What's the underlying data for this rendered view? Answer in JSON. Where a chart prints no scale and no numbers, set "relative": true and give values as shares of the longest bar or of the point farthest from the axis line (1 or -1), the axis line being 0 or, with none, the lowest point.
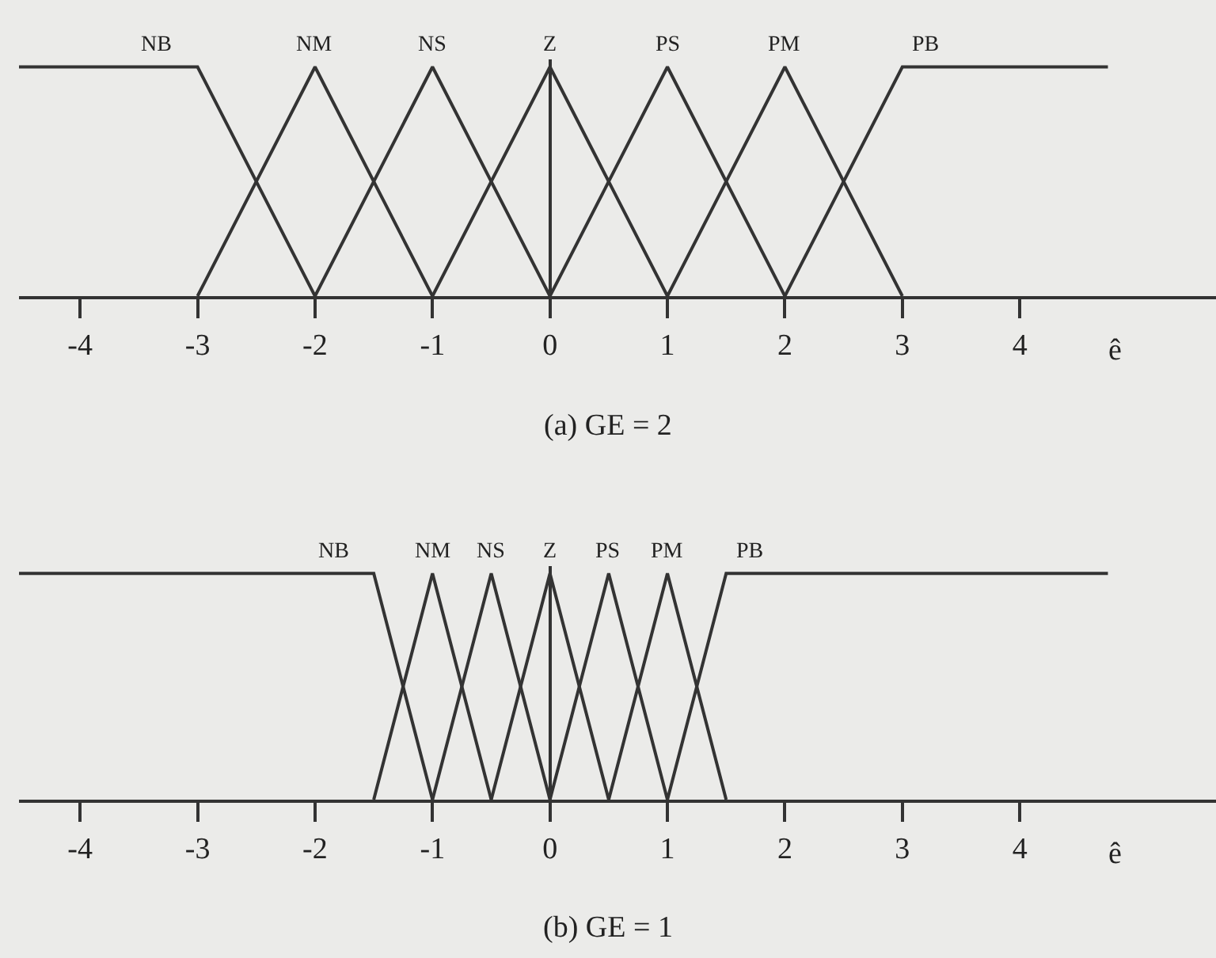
{
  "chart_data": [
    {
      "type": "line",
      "title": "(a) GE = 2",
      "xlabel": "ê",
      "relative": true,
      "legend": false,
      "marker": "none",
      "line_style": "solid",
      "xlim": [
        -4.52,
        5.67
      ],
      "xticks": [
        -4,
        -3,
        -2,
        -1,
        0,
        1,
        2,
        3,
        4
      ],
      "series": [
        {
          "name": "NB",
          "color": "#333333",
          "x": [
            -4.52,
            -3,
            -2
          ],
          "values": [
            1,
            1,
            0
          ]
        },
        {
          "name": "NM",
          "color": "#333333",
          "x": [
            -3,
            -2,
            -1
          ],
          "values": [
            0,
            1,
            0
          ]
        },
        {
          "name": "NS",
          "color": "#333333",
          "x": [
            -2,
            -1,
            0
          ],
          "values": [
            0,
            1,
            0
          ]
        },
        {
          "name": "Z",
          "color": "#333333",
          "x": [
            -1,
            0,
            1
          ],
          "values": [
            0,
            1,
            0
          ]
        },
        {
          "name": "PS",
          "color": "#333333",
          "x": [
            0,
            1,
            2
          ],
          "values": [
            0,
            1,
            0
          ]
        },
        {
          "name": "PM",
          "color": "#333333",
          "x": [
            1,
            2,
            3
          ],
          "values": [
            0,
            1,
            0
          ]
        },
        {
          "name": "PB",
          "color": "#333333",
          "x": [
            2,
            3,
            4.75
          ],
          "values": [
            0,
            1,
            1
          ]
        }
      ]
    },
    {
      "type": "line",
      "title": "(b) GE = 1",
      "xlabel": "ê",
      "relative": true,
      "legend": false,
      "marker": "none",
      "line_style": "solid",
      "xlim": [
        -4.52,
        5.67
      ],
      "xticks": [
        -4,
        -3,
        -2,
        -1,
        0,
        1,
        2,
        3,
        4
      ],
      "series": [
        {
          "name": "NB",
          "color": "#333333",
          "x": [
            -4.52,
            -1.5,
            -1
          ],
          "values": [
            1,
            1,
            0
          ]
        },
        {
          "name": "NM",
          "color": "#333333",
          "x": [
            -1.5,
            -1,
            -0.5
          ],
          "values": [
            0,
            1,
            0
          ]
        },
        {
          "name": "NS",
          "color": "#333333",
          "x": [
            -1,
            -0.5,
            0
          ],
          "values": [
            0,
            1,
            0
          ]
        },
        {
          "name": "Z",
          "color": "#333333",
          "x": [
            -0.5,
            0,
            0.5
          ],
          "values": [
            0,
            1,
            0
          ]
        },
        {
          "name": "PS",
          "color": "#333333",
          "x": [
            0,
            0.5,
            1
          ],
          "values": [
            0,
            1,
            0
          ]
        },
        {
          "name": "PM",
          "color": "#333333",
          "x": [
            0.5,
            1,
            1.5
          ],
          "values": [
            0,
            1,
            0
          ]
        },
        {
          "name": "PB",
          "color": "#333333",
          "x": [
            1,
            1.5,
            4.75
          ],
          "values": [
            0,
            1,
            1
          ]
        }
      ]
    }
  ]
}
